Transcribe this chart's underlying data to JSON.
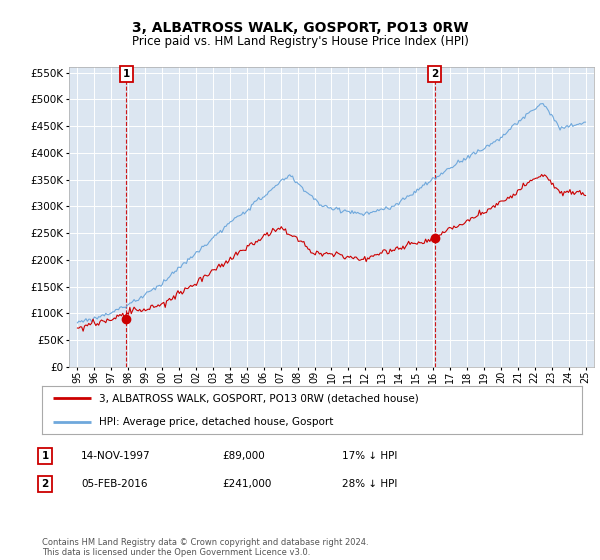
{
  "title": "3, ALBATROSS WALK, GOSPORT, PO13 0RW",
  "subtitle": "Price paid vs. HM Land Registry's House Price Index (HPI)",
  "hpi_color": "#6fa8dc",
  "price_color": "#cc0000",
  "vline_color": "#cc0000",
  "background_color": "#ffffff",
  "plot_bg_color": "#dce6f1",
  "grid_color": "#ffffff",
  "ylim": [
    0,
    560000
  ],
  "yticks": [
    0,
    50000,
    100000,
    150000,
    200000,
    250000,
    300000,
    350000,
    400000,
    450000,
    500000,
    550000
  ],
  "xlim_start": 1994.5,
  "xlim_end": 2025.5,
  "transaction1": {
    "date_label": "14-NOV-1997",
    "price": 89000,
    "hpi_pct": "17% ↓ HPI",
    "x": 1997.87,
    "label": "1"
  },
  "transaction2": {
    "date_label": "05-FEB-2016",
    "price": 241000,
    "hpi_pct": "28% ↓ HPI",
    "x": 2016.1,
    "label": "2"
  },
  "legend_line1": "3, ALBATROSS WALK, GOSPORT, PO13 0RW (detached house)",
  "legend_line2": "HPI: Average price, detached house, Gosport",
  "footer": "Contains HM Land Registry data © Crown copyright and database right 2024.\nThis data is licensed under the Open Government Licence v3.0.",
  "table_rows": [
    {
      "num": "1",
      "date": "14-NOV-1997",
      "price": "£89,000",
      "hpi": "17% ↓ HPI"
    },
    {
      "num": "2",
      "date": "05-FEB-2016",
      "price": "£241,000",
      "hpi": "28% ↓ HPI"
    }
  ]
}
